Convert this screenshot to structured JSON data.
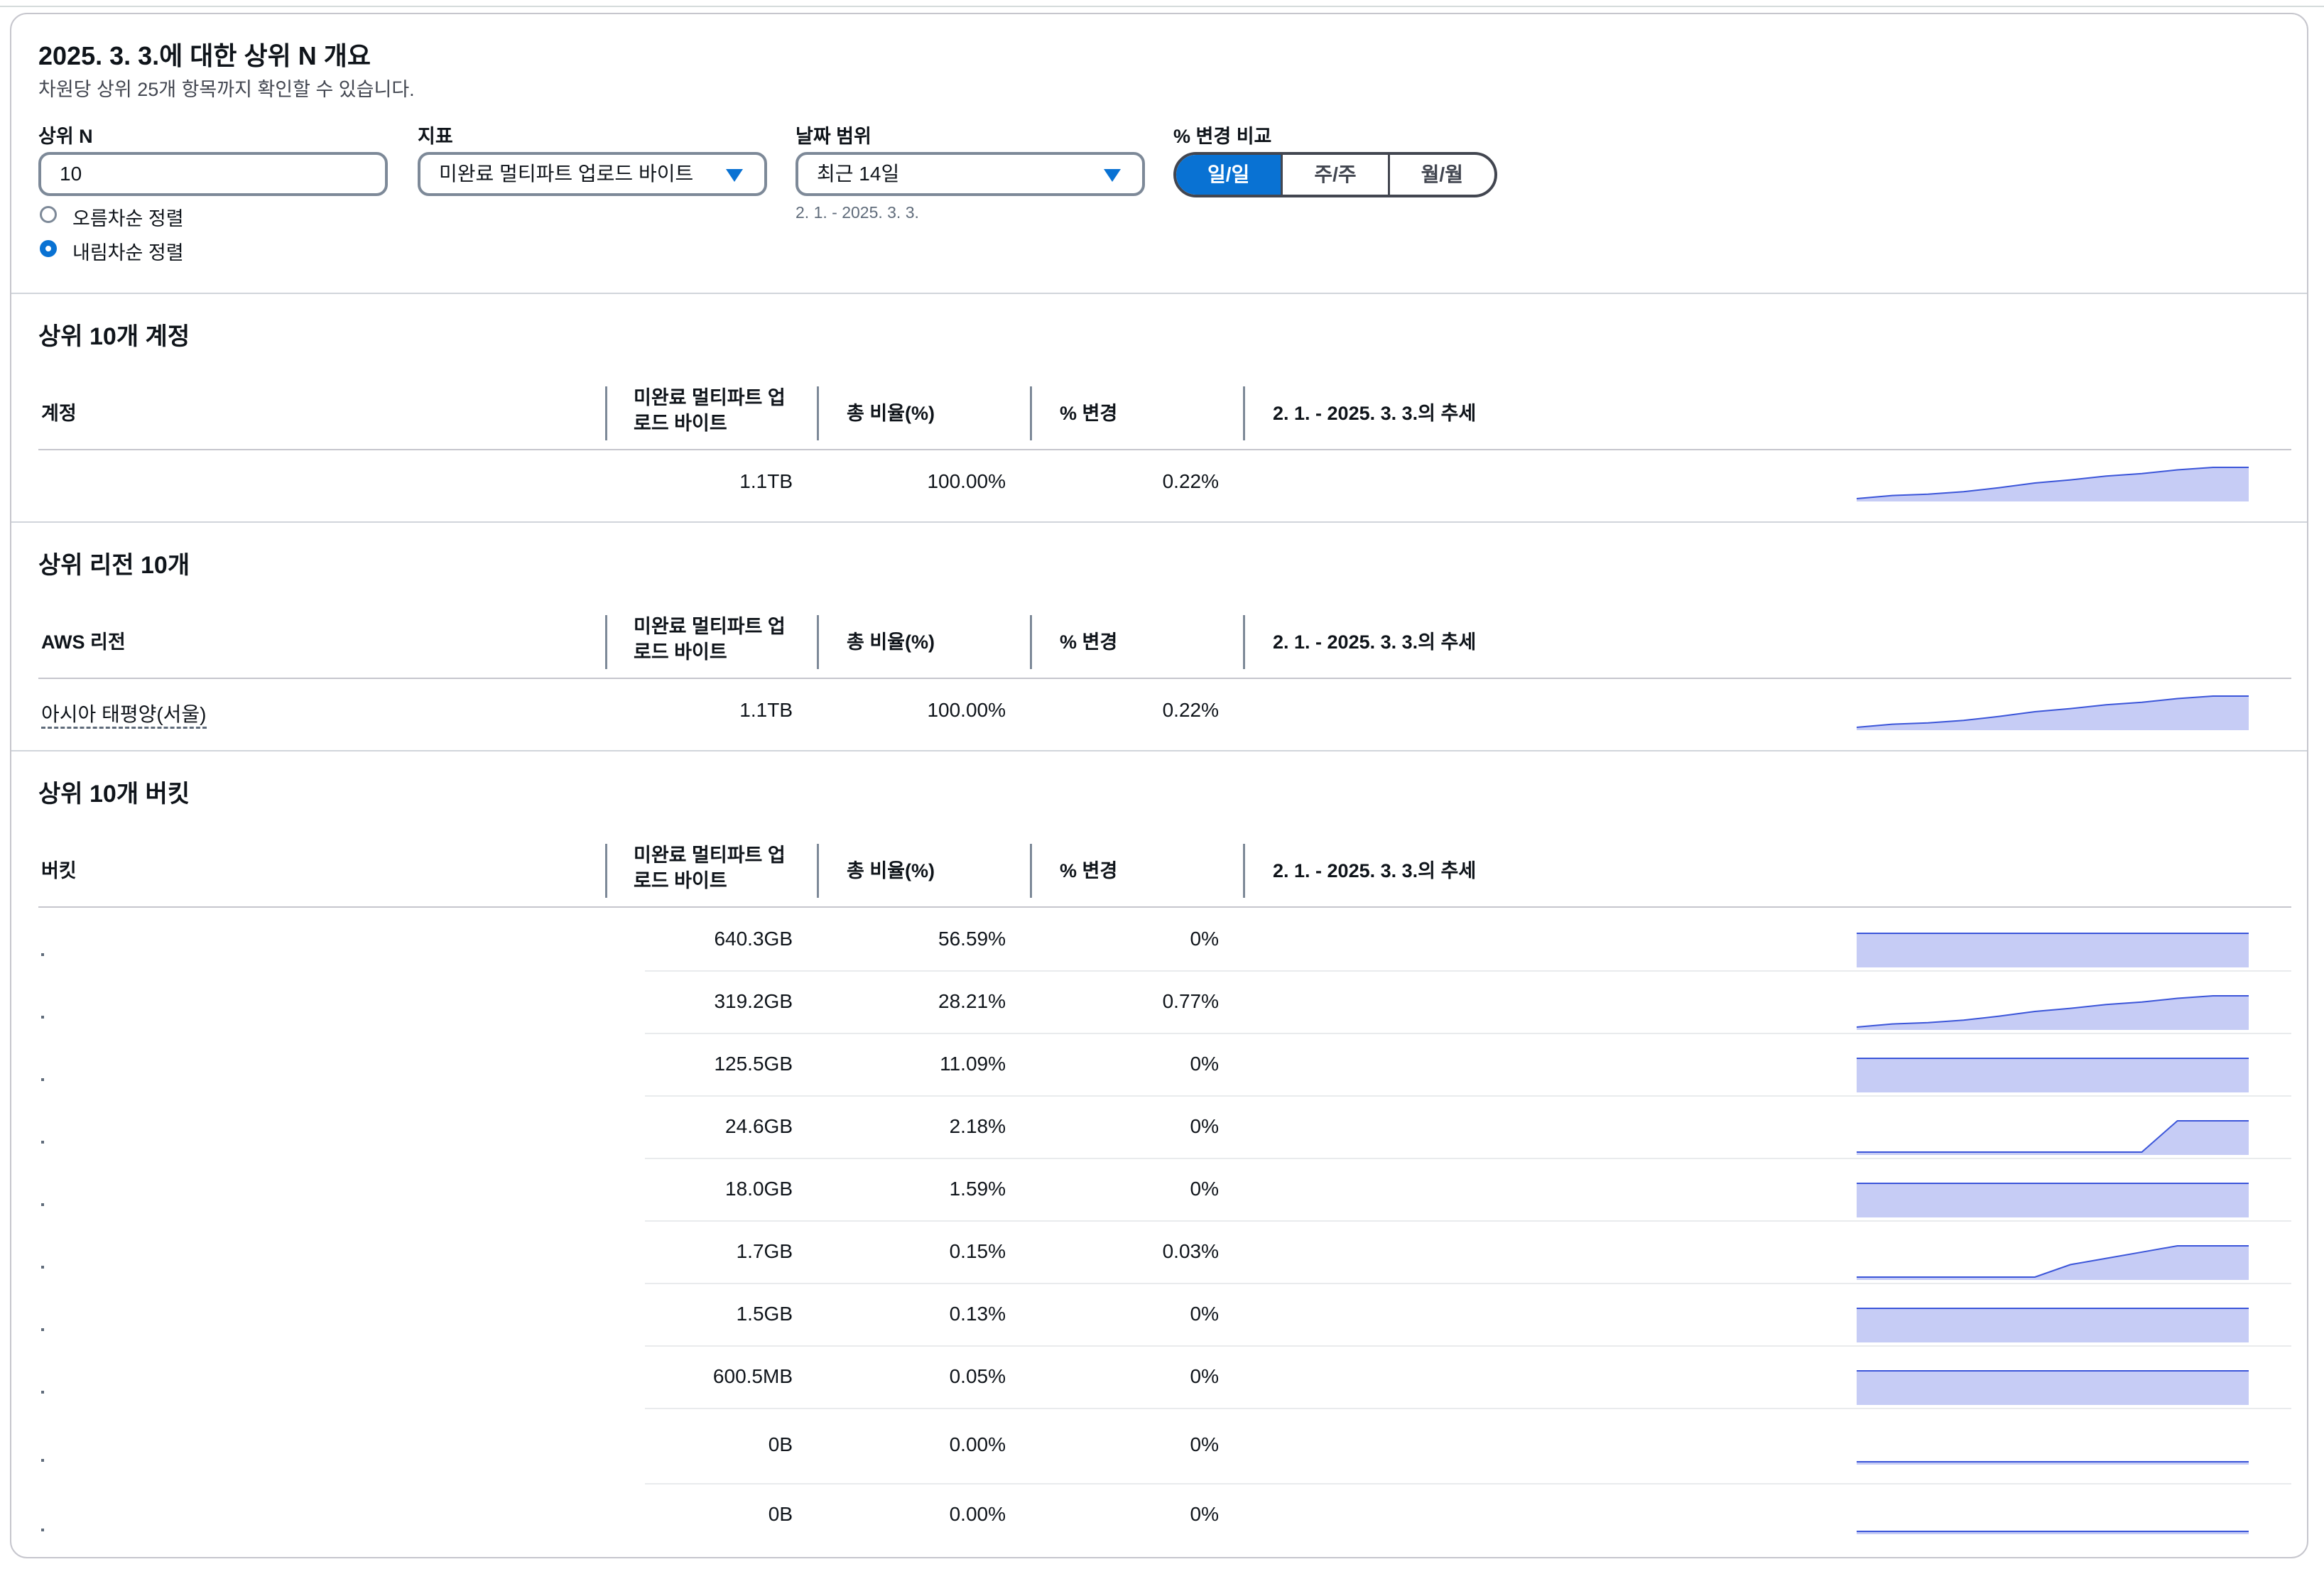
{
  "header": {
    "title": "2025. 3. 3.에 대한 상위 N 개요",
    "subtitle": "차원당 상위 25개 항목까지 확인할 수 있습니다."
  },
  "filters": {
    "top_n": {
      "label": "상위 N",
      "value": "10"
    },
    "sort": {
      "asc_label": "오름차순 정렬",
      "desc_label": "내림차순 정렬",
      "selected": "desc"
    },
    "metric": {
      "label": "지표",
      "value": "미완료 멀티파트 업로드 바이트"
    },
    "date_range": {
      "label": "날짜 범위",
      "value": "최근 14일",
      "hint": "2. 1. - 2025. 3. 3."
    },
    "compare": {
      "label": "% 변경 비교",
      "options": [
        "일/일",
        "주/주",
        "월/월"
      ],
      "selected": "일/일"
    }
  },
  "colors": {
    "accent": "#0972d3",
    "trend_fill": "#c6ccf5",
    "trend_line": "#3b55d9"
  },
  "sections": [
    {
      "title": "상위 10개 계정",
      "columns": [
        "계정",
        "미완료 멀티파트 업 로드 바이트",
        "총 비율(%)",
        "% 변경",
        "2. 1. - 2025. 3. 3.의 추세"
      ],
      "rows": [
        {
          "name": "",
          "bytes": "1.1TB",
          "pct": "100.00%",
          "change": "0.22%",
          "trend": [
            0.0,
            0.1,
            0.14,
            0.22,
            0.35,
            0.5,
            0.6,
            0.72,
            0.8,
            0.92,
            1.0,
            1.0
          ]
        }
      ]
    },
    {
      "title": "상위 리전 10개",
      "columns": [
        "AWS 리전",
        "미완료 멀티파트 업 로드 바이트",
        "총 비율(%)",
        "% 변경",
        "2. 1. - 2025. 3. 3.의 추세"
      ],
      "rows": [
        {
          "name": "아시아 태평양(서울)",
          "bytes": "1.1TB",
          "pct": "100.00%",
          "change": "0.22%",
          "trend": [
            0.0,
            0.1,
            0.14,
            0.22,
            0.35,
            0.5,
            0.6,
            0.72,
            0.8,
            0.92,
            1.0,
            1.0
          ]
        }
      ]
    },
    {
      "title": "상위 10개 버킷",
      "columns": [
        "버킷",
        "미완료 멀티파트 업 로드 바이트",
        "총 비율(%)",
        "% 변경",
        "2. 1. - 2025. 3. 3.의 추세"
      ],
      "rows": [
        {
          "name": "",
          "bytes": "640.3GB",
          "pct": "56.59%",
          "change": "0%",
          "trend": [
            1,
            1,
            1,
            1,
            1,
            1,
            1,
            1,
            1,
            1,
            1,
            1
          ]
        },
        {
          "name": "",
          "bytes": "319.2GB",
          "pct": "28.21%",
          "change": "0.77%",
          "trend": [
            0.0,
            0.1,
            0.14,
            0.22,
            0.35,
            0.5,
            0.6,
            0.72,
            0.8,
            0.92,
            1.0,
            1.0
          ]
        },
        {
          "name": "",
          "bytes": "125.5GB",
          "pct": "11.09%",
          "change": "0%",
          "trend": [
            1,
            1,
            1,
            1,
            1,
            1,
            1,
            1,
            1,
            1,
            1,
            1
          ]
        },
        {
          "name": "",
          "bytes": "24.6GB",
          "pct": "2.18%",
          "change": "0%",
          "trend": [
            0,
            0,
            0,
            0,
            0,
            0,
            0,
            0,
            0,
            1,
            1,
            1
          ]
        },
        {
          "name": "",
          "bytes": "18.0GB",
          "pct": "1.59%",
          "change": "0%",
          "trend": [
            1,
            1,
            1,
            1,
            1,
            1,
            1,
            1,
            1,
            1,
            1,
            1
          ]
        },
        {
          "name": "",
          "bytes": "1.7GB",
          "pct": "0.15%",
          "change": "0.03%",
          "trend": [
            0,
            0,
            0,
            0,
            0,
            0,
            0.4,
            0.6,
            0.8,
            1,
            1,
            1
          ]
        },
        {
          "name": "",
          "bytes": "1.5GB",
          "pct": "0.13%",
          "change": "0%",
          "trend": [
            1,
            1,
            1,
            1,
            1,
            1,
            1,
            1,
            1,
            1,
            1,
            1
          ]
        },
        {
          "name": "",
          "bytes": "600.5MB",
          "pct": "0.05%",
          "change": "0%",
          "trend": [
            1,
            1,
            1,
            1,
            1,
            1,
            1,
            1,
            1,
            1,
            1,
            1
          ]
        },
        {
          "name": "",
          "bytes": "0B",
          "pct": "0.00%",
          "change": "0%",
          "trend": [
            0,
            0,
            0,
            0,
            0,
            0,
            0,
            0,
            0,
            0,
            0,
            0
          ]
        },
        {
          "name": "",
          "bytes": "0B",
          "pct": "0.00%",
          "change": "0%",
          "trend": [
            0,
            0,
            0,
            0,
            0,
            0,
            0,
            0,
            0,
            0,
            0,
            0
          ]
        }
      ]
    }
  ]
}
